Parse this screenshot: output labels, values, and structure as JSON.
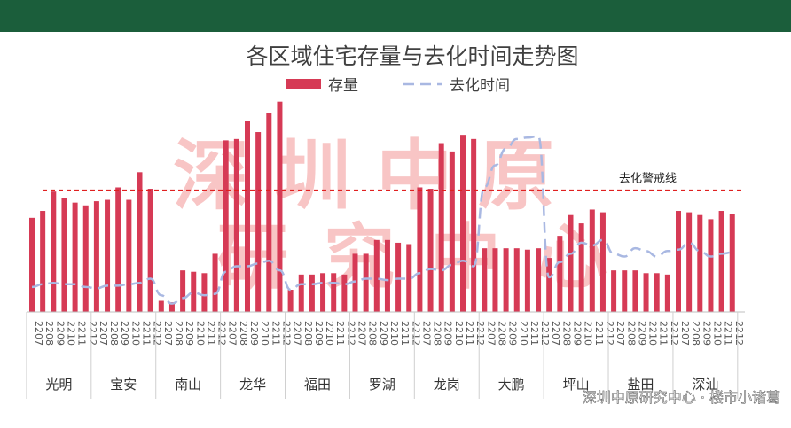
{
  "chart_data": {
    "type": "bar",
    "title": "各区域住宅存量与去化时间走势图",
    "legend": {
      "placement": "top-center"
    },
    "series": [
      {
        "name": "存量",
        "kind": "bar",
        "color": "#d63a55"
      },
      {
        "name": "去化时间",
        "kind": "line",
        "color": "#a9b8e2",
        "dash": true
      }
    ],
    "months": [
      "2207",
      "2208",
      "2209",
      "2210",
      "2211",
      "2212"
    ],
    "groups": [
      {
        "name": "光明",
        "bars": [
          68,
          73,
          87,
          82,
          79,
          77
        ],
        "line": [
          18,
          20,
          21,
          20,
          20,
          18
        ]
      },
      {
        "name": "宝安",
        "bars": [
          80,
          81,
          90,
          81,
          101,
          89
        ],
        "line": [
          17,
          19,
          19,
          20,
          21,
          24
        ]
      },
      {
        "name": "南山",
        "bars": [
          8,
          7,
          30,
          29,
          28,
          42
        ],
        "line": [
          12,
          6,
          10,
          14,
          12,
          13
        ]
      },
      {
        "name": "龙华",
        "bars": [
          124,
          125,
          138,
          130,
          144,
          152
        ],
        "line": [
          29,
          33,
          33,
          35,
          37,
          30
        ]
      },
      {
        "name": "福田",
        "bars": [
          16,
          27,
          27,
          28,
          28,
          27
        ],
        "line": [
          16,
          20,
          20,
          21,
          21,
          20
        ]
      },
      {
        "name": "罗湖",
        "bars": [
          42,
          42,
          52,
          52,
          50,
          49
        ],
        "line": [
          22,
          24,
          24,
          23,
          24,
          24
        ]
      },
      {
        "name": "龙岗",
        "bars": [
          90,
          89,
          122,
          116,
          128,
          125
        ],
        "line": [
          28,
          31,
          30,
          34,
          37,
          33
        ]
      },
      {
        "name": "大鹏",
        "bars": [
          46,
          46,
          46,
          46,
          45,
          46
        ],
        "line": [
          90,
          106,
          118,
          125,
          126,
          127
        ]
      },
      {
        "name": "坪山",
        "bars": [
          39,
          55,
          70,
          64,
          74,
          72
        ],
        "line": [
          25,
          36,
          42,
          50,
          48,
          52
        ]
      },
      {
        "name": "盐田",
        "bars": [
          30,
          30,
          30,
          28,
          28,
          27
        ],
        "line": [
          42,
          40,
          46,
          44,
          40,
          44
        ]
      },
      {
        "name": "深汕",
        "bars": [
          73,
          72,
          70,
          67,
          73,
          71
        ],
        "line": [
          45,
          50,
          44,
          40,
          42,
          43
        ]
      }
    ],
    "annotations": [
      {
        "text": "去化警戒线",
        "value": 88
      }
    ],
    "watermark": "深圳中原研究中心",
    "credit": "深圳中原研究中心 · 楼市小诸葛"
  }
}
